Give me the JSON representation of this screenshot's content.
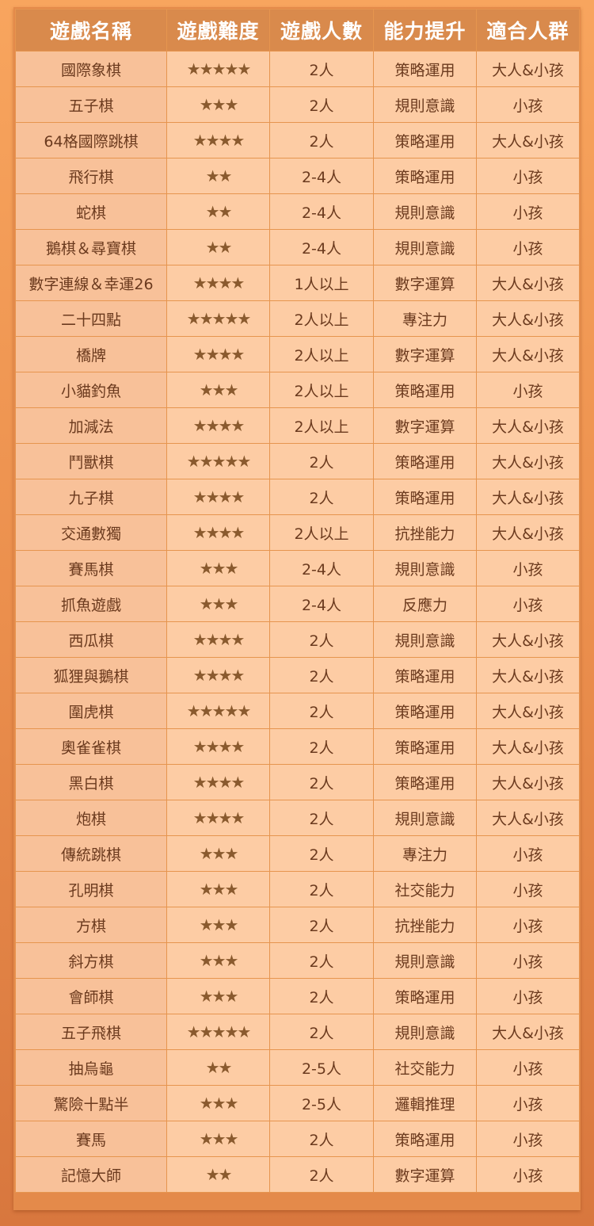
{
  "headers": [
    "遊戲名稱",
    "遊戲難度",
    "遊戲人數",
    "能力提升",
    "適合人群"
  ],
  "colors": {
    "header_bg": "#d98a4c",
    "cell_bg": "#fdcca4",
    "name_bg": "#f8c199",
    "text": "#6b3a1e",
    "star": "#8a5a2e"
  },
  "rows": [
    {
      "name": "國際象棋",
      "difficulty": 5,
      "players": "2人",
      "skill": "策略運用",
      "audience": "大人&小孩"
    },
    {
      "name": "五子棋",
      "difficulty": 3,
      "players": "2人",
      "skill": "規則意識",
      "audience": "小孩"
    },
    {
      "name": "64格國際跳棋",
      "difficulty": 4,
      "players": "2人",
      "skill": "策略運用",
      "audience": "大人&小孩"
    },
    {
      "name": "飛行棋",
      "difficulty": 2,
      "players": "2-4人",
      "skill": "策略運用",
      "audience": "小孩"
    },
    {
      "name": "蛇棋",
      "difficulty": 2,
      "players": "2-4人",
      "skill": "規則意識",
      "audience": "小孩"
    },
    {
      "name": "鵝棋＆尋寶棋",
      "difficulty": 2,
      "players": "2-4人",
      "skill": "規則意識",
      "audience": "小孩"
    },
    {
      "name": "數字連線＆幸運26",
      "difficulty": 4,
      "players": "1人以上",
      "skill": "數字運算",
      "audience": "大人&小孩"
    },
    {
      "name": "二十四點",
      "difficulty": 5,
      "players": "2人以上",
      "skill": "專注力",
      "audience": "大人&小孩"
    },
    {
      "name": "橋牌",
      "difficulty": 4,
      "players": "2人以上",
      "skill": "數字運算",
      "audience": "大人&小孩"
    },
    {
      "name": "小貓釣魚",
      "difficulty": 3,
      "players": "2人以上",
      "skill": "策略運用",
      "audience": "小孩"
    },
    {
      "name": "加減法",
      "difficulty": 4,
      "players": "2人以上",
      "skill": "數字運算",
      "audience": "大人&小孩"
    },
    {
      "name": "鬥獸棋",
      "difficulty": 5,
      "players": "2人",
      "skill": "策略運用",
      "audience": "大人&小孩"
    },
    {
      "name": "九子棋",
      "difficulty": 4,
      "players": "2人",
      "skill": "策略運用",
      "audience": "大人&小孩"
    },
    {
      "name": "交通數獨",
      "difficulty": 4,
      "players": "2人以上",
      "skill": "抗挫能力",
      "audience": "大人&小孩"
    },
    {
      "name": "賽馬棋",
      "difficulty": 3,
      "players": "2-4人",
      "skill": "規則意識",
      "audience": "小孩"
    },
    {
      "name": "抓魚遊戲",
      "difficulty": 3,
      "players": "2-4人",
      "skill": "反應力",
      "audience": "小孩"
    },
    {
      "name": "西瓜棋",
      "difficulty": 4,
      "players": "2人",
      "skill": "規則意識",
      "audience": "大人&小孩"
    },
    {
      "name": "狐狸與鵝棋",
      "difficulty": 4,
      "players": "2人",
      "skill": "策略運用",
      "audience": "大人&小孩"
    },
    {
      "name": "圍虎棋",
      "difficulty": 5,
      "players": "2人",
      "skill": "策略運用",
      "audience": "大人&小孩"
    },
    {
      "name": "奧雀雀棋",
      "difficulty": 4,
      "players": "2人",
      "skill": "策略運用",
      "audience": "大人&小孩"
    },
    {
      "name": "黑白棋",
      "difficulty": 4,
      "players": "2人",
      "skill": "策略運用",
      "audience": "大人&小孩"
    },
    {
      "name": "炮棋",
      "difficulty": 4,
      "players": "2人",
      "skill": "規則意識",
      "audience": "大人&小孩"
    },
    {
      "name": "傳統跳棋",
      "difficulty": 3,
      "players": "2人",
      "skill": "專注力",
      "audience": "小孩"
    },
    {
      "name": "孔明棋",
      "difficulty": 3,
      "players": "2人",
      "skill": "社交能力",
      "audience": "小孩"
    },
    {
      "name": "方棋",
      "difficulty": 3,
      "players": "2人",
      "skill": "抗挫能力",
      "audience": "小孩"
    },
    {
      "name": "斜方棋",
      "difficulty": 3,
      "players": "2人",
      "skill": "規則意識",
      "audience": "小孩"
    },
    {
      "name": "會師棋",
      "difficulty": 3,
      "players": "2人",
      "skill": "策略運用",
      "audience": "小孩"
    },
    {
      "name": "五子飛棋",
      "difficulty": 5,
      "players": "2人",
      "skill": "規則意識",
      "audience": "大人&小孩"
    },
    {
      "name": "抽烏龜",
      "difficulty": 2,
      "players": "2-5人",
      "skill": "社交能力",
      "audience": "小孩"
    },
    {
      "name": "驚險十點半",
      "difficulty": 3,
      "players": "2-5人",
      "skill": "邏輯推理",
      "audience": "小孩"
    },
    {
      "name": "賽馬",
      "difficulty": 3,
      "players": "2人",
      "skill": "策略運用",
      "audience": "小孩"
    },
    {
      "name": "記憶大師",
      "difficulty": 2,
      "players": "2人",
      "skill": "數字運算",
      "audience": "小孩"
    }
  ]
}
